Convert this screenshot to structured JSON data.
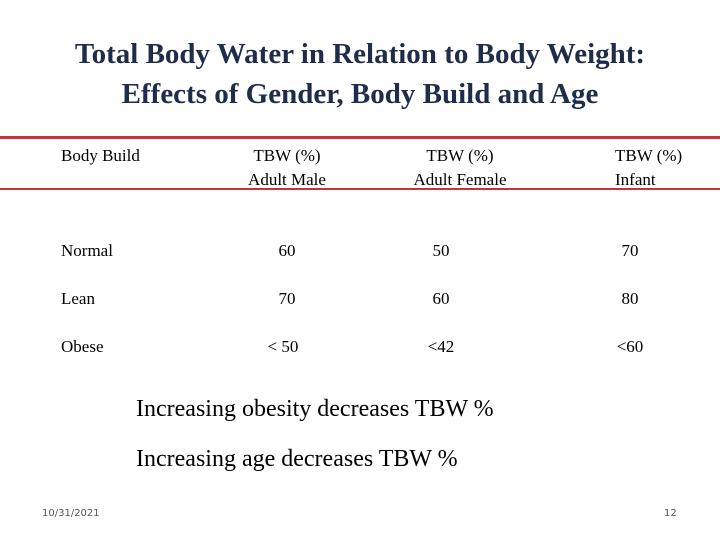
{
  "slide": {
    "title_line1": "Total Body Water in Relation to Body Weight:",
    "title_line2": "Effects of Gender, Body Build and Age"
  },
  "table": {
    "headers": [
      {
        "line1": "Body Build",
        "line2": ""
      },
      {
        "line1": "TBW (%)",
        "line2": "Adult Male"
      },
      {
        "line1": "TBW (%)",
        "line2": "Adult Female"
      },
      {
        "line1": "TBW (%)",
        "line2": "Infant"
      }
    ],
    "rows": [
      {
        "build": "Normal",
        "male": "60",
        "female": "50",
        "infant": "70"
      },
      {
        "build": "Lean",
        "male": "70",
        "female": "60",
        "infant": "80"
      },
      {
        "build": "Obese",
        "male": "< 50",
        "female": "<42",
        "infant": "<60"
      }
    ]
  },
  "notes": [
    "Increasing obesity decreases TBW %",
    "Increasing age decreases TBW %"
  ],
  "footer": {
    "date": "10/31/2021",
    "page": "12"
  },
  "colors": {
    "title": "#1f2d4a",
    "rule": "#c8333a"
  }
}
